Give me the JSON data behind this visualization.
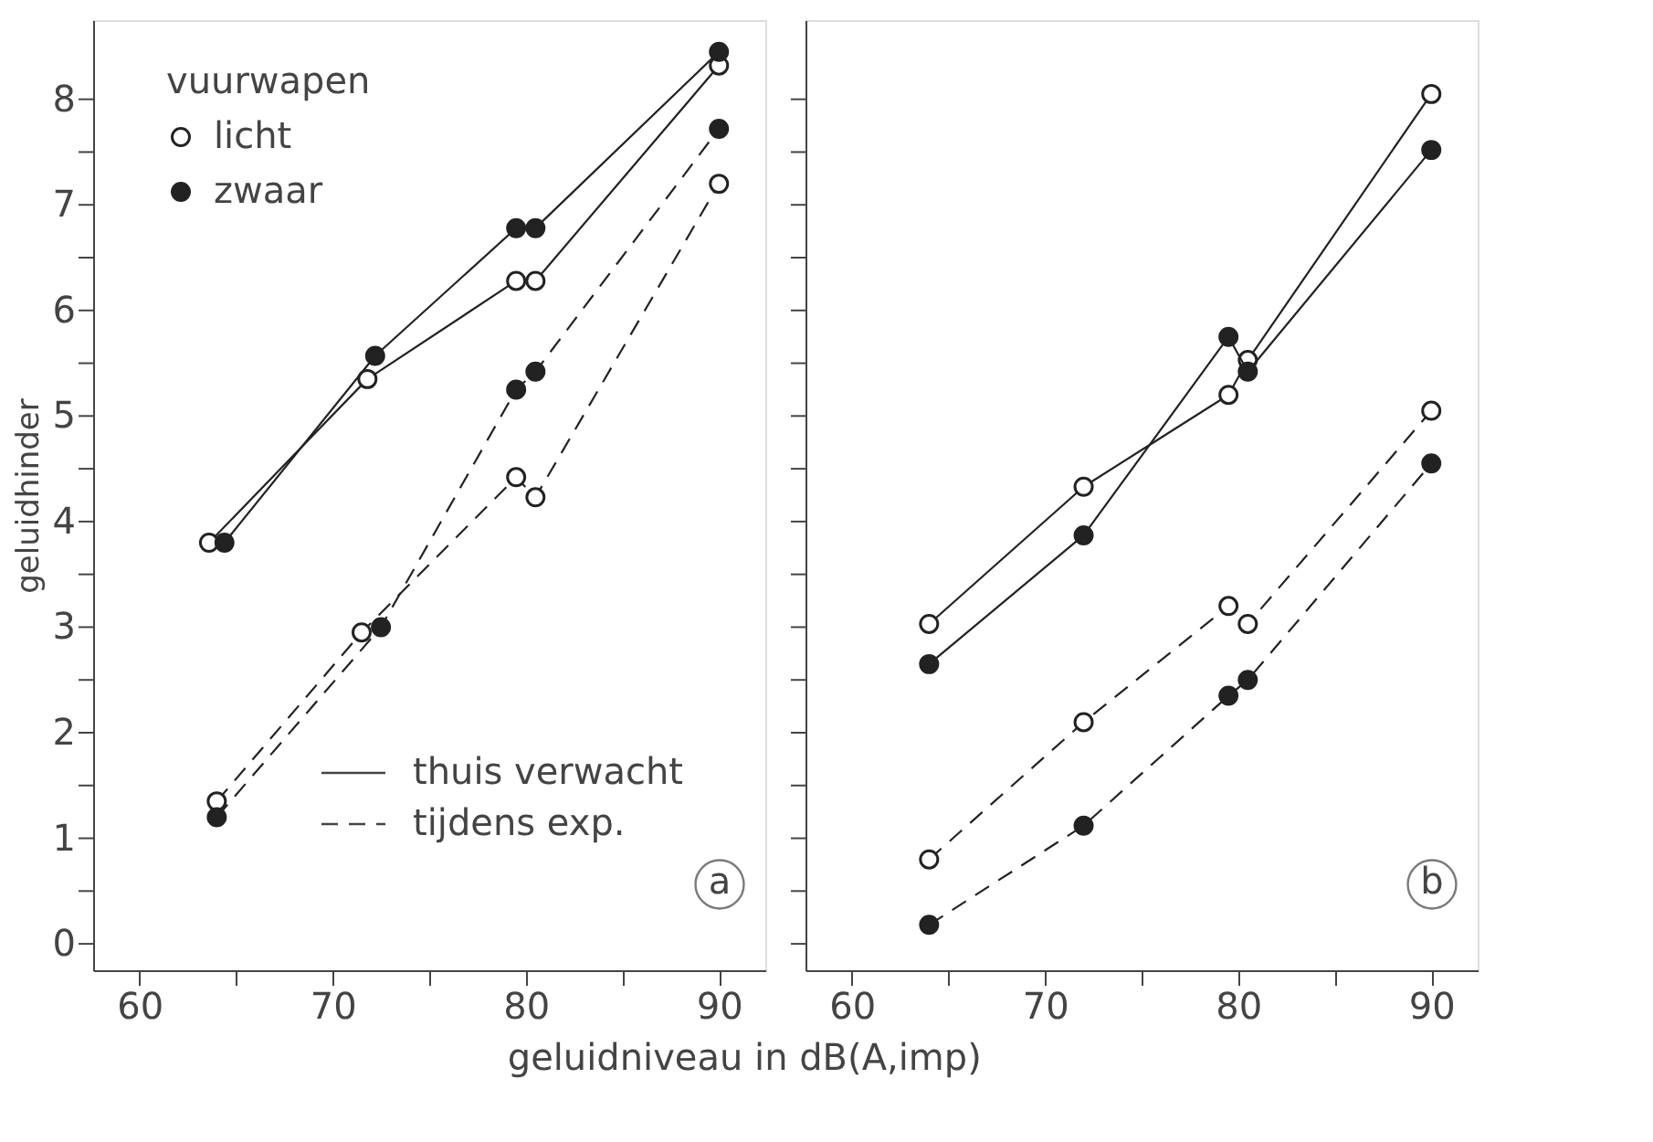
{
  "chart_data": [
    {
      "type": "line",
      "ylabel": "geluidhinder",
      "xlabel": "geluidniveau in dB(A,imp)",
      "legend_title": "vuurwapen",
      "legend": "top left",
      "marker": "circle",
      "xlim": [
        57.6,
        92.4
      ],
      "ylim": [
        -0.25,
        8.75
      ],
      "xticks": [
        60,
        {
          "value": 65,
          "label": null
        },
        70,
        {
          "value": 75,
          "label": null
        },
        80,
        {
          "value": 85,
          "label": null
        },
        90
      ],
      "yticks": [
        0,
        {
          "value": 0.5,
          "label": null
        },
        1,
        {
          "value": 1.5,
          "label": null
        },
        2,
        {
          "value": 2.5,
          "label": null
        },
        3,
        {
          "value": 3.5,
          "label": null
        },
        4,
        {
          "value": 4.5,
          "label": null
        },
        5,
        {
          "value": 5.5,
          "label": null
        },
        6,
        {
          "value": 6.5,
          "label": null
        },
        7,
        {
          "value": 7.5,
          "label": null
        },
        8
      ],
      "series": [
        {
          "name": "licht",
          "color": "#222222",
          "line_style": "solid",
          "x": [
            63.6,
            71.8,
            79.5,
            80.5,
            90
          ],
          "values": [
            3.8,
            5.35,
            6.28,
            6.28,
            8.32
          ]
        },
        {
          "name": "zwaar",
          "color": "#222222",
          "line_style": "solid",
          "x": [
            64.4,
            72.2,
            79.5,
            80.5,
            90
          ],
          "values": [
            3.8,
            5.57,
            6.78,
            6.78,
            8.45
          ]
        },
        {
          "color": "#222222",
          "line_style": "dashed",
          "x": [
            64,
            71.5,
            79.5,
            80.5,
            90
          ],
          "values": [
            1.35,
            2.95,
            4.42,
            4.23,
            7.2
          ]
        },
        {
          "color": "#222222",
          "line_style": "dashed",
          "x": [
            64,
            72.5,
            79.5,
            80.5,
            90
          ],
          "values": [
            1.2,
            3.0,
            5.25,
            5.42,
            7.72
          ]
        }
      ],
      "annotations": [
        "thuis verwacht",
        "tijdens exp.",
        "a"
      ]
    },
    {
      "type": "line",
      "marker": "circle",
      "tick_labels": "x",
      "xlim": [
        57.6,
        92.4
      ],
      "ylim": [
        -0.25,
        8.75
      ],
      "xticks": [
        60,
        {
          "value": 65,
          "label": null
        },
        70,
        {
          "value": 75,
          "label": null
        },
        80,
        {
          "value": 85,
          "label": null
        },
        90
      ],
      "yticks": [
        0,
        {
          "value": 0.5,
          "label": null
        },
        1,
        {
          "value": 1.5,
          "label": null
        },
        2,
        {
          "value": 2.5,
          "label": null
        },
        3,
        {
          "value": 3.5,
          "label": null
        },
        4,
        {
          "value": 4.5,
          "label": null
        },
        5,
        {
          "value": 5.5,
          "label": null
        },
        6,
        {
          "value": 6.5,
          "label": null
        },
        7,
        {
          "value": 7.5,
          "label": null
        },
        8
      ],
      "series": [
        {
          "color": "#222222",
          "line_style": "solid",
          "x": [
            64,
            72,
            79.5,
            80.5,
            90
          ],
          "values": [
            3.03,
            4.33,
            5.2,
            5.53,
            8.05
          ]
        },
        {
          "color": "#222222",
          "line_style": "solid",
          "x": [
            64,
            72,
            79.5,
            80.5,
            90
          ],
          "values": [
            2.65,
            3.87,
            5.75,
            5.42,
            7.52
          ]
        },
        {
          "color": "#222222",
          "line_style": "dashed",
          "x": [
            64,
            72,
            79.5,
            80.5,
            90
          ],
          "values": [
            0.8,
            2.1,
            3.2,
            3.03,
            5.05
          ]
        },
        {
          "color": "#222222",
          "line_style": "dashed",
          "x": [
            64,
            72,
            79.5,
            80.5,
            90
          ],
          "values": [
            0.18,
            1.12,
            2.35,
            2.5,
            4.55
          ]
        }
      ],
      "annotations": [
        "b"
      ]
    }
  ]
}
